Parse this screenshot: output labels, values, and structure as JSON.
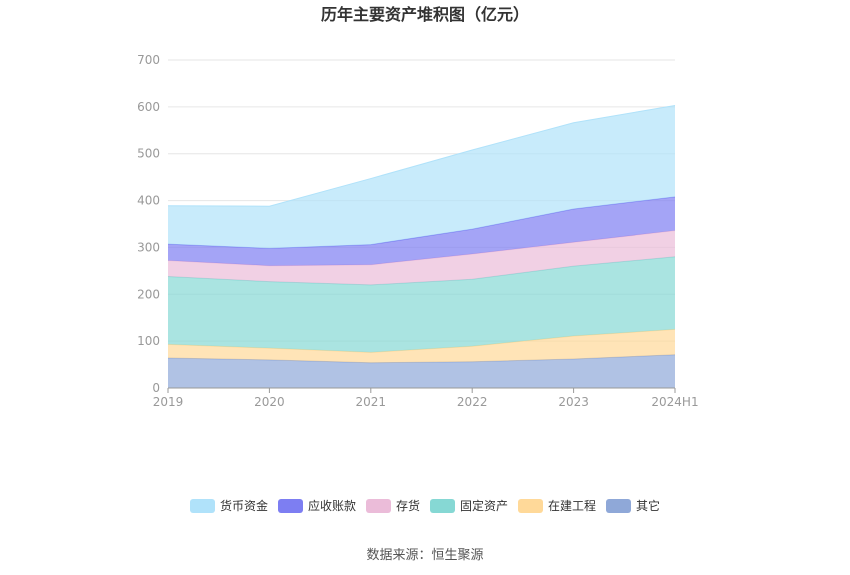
{
  "chart_data": {
    "type": "area",
    "stacked": true,
    "title": "历年主要资产堆积图（亿元）",
    "categories": [
      "2019",
      "2020",
      "2021",
      "2022",
      "2023",
      "2024H1"
    ],
    "ylim": [
      0,
      700
    ],
    "yticks": [
      0,
      100,
      200,
      300,
      400,
      500,
      600,
      700
    ],
    "grid": true,
    "legend_position": "bottom",
    "series": [
      {
        "name": "其它",
        "color": "#8fa8d8",
        "values": [
          64,
          60,
          54,
          56,
          62,
          71
        ]
      },
      {
        "name": "在建工程",
        "color": "#ffd999",
        "values": [
          29,
          25,
          22,
          33,
          49,
          54
        ]
      },
      {
        "name": "固定资产",
        "color": "#86d8d4",
        "values": [
          145,
          142,
          144,
          143,
          149,
          155
        ]
      },
      {
        "name": "存货",
        "color": "#ebbcd9",
        "values": [
          34,
          34,
          43,
          54,
          51,
          56
        ]
      },
      {
        "name": "应收账款",
        "color": "#7d7ef2",
        "values": [
          35,
          37,
          43,
          53,
          71,
          72
        ]
      },
      {
        "name": "货币资金",
        "color": "#b0e2fa",
        "values": [
          82,
          90,
          141,
          169,
          184,
          195
        ]
      }
    ],
    "legend_order": [
      "货币资金",
      "应收账款",
      "存货",
      "固定资产",
      "在建工程",
      "其它"
    ]
  },
  "footer": {
    "source": "数据来源：恒生聚源"
  }
}
